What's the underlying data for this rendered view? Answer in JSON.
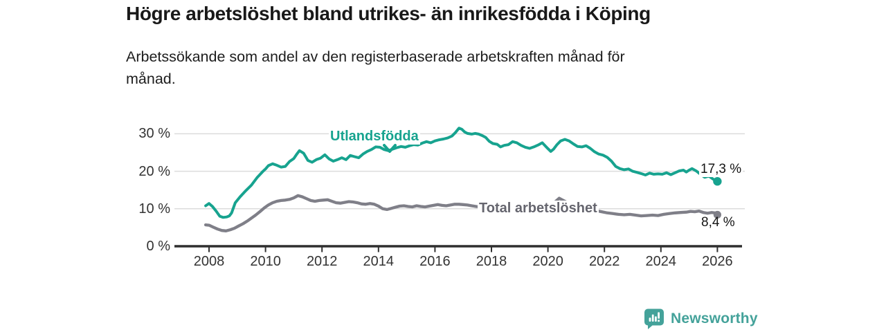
{
  "title": "Högre arbetslöshet bland utrikes- än inrikesfödda i Köping",
  "subtitle": {
    "line1": "Arbetssökande som andel av den registerbaserade arbetskraften månad för",
    "line2": "månad."
  },
  "colors": {
    "accent_teal": "#17a38f",
    "series_gray": "#7f7f88",
    "gray_label": "#65656e",
    "value_label": "#141414",
    "grid": "#dcdcdc",
    "axis": "#2f2f2f",
    "tick_text": "#333333",
    "logo_teal": "#44a29a",
    "background": "#ffffff"
  },
  "branding": {
    "logo_text": "Newsworthy",
    "logo_icon": "bar-chart-speech-bubble"
  },
  "chart_data": {
    "type": "line",
    "title": "Högre arbetslöshet bland utrikes- än inrikesfödda i Köping",
    "subtitle": "Arbetssökande som andel av den registerbaserade arbetskraften månad för månad.",
    "unit": "%",
    "grid": "horizontal",
    "xlim": [
      2007.6,
      2026.9
    ],
    "ylim": [
      0,
      33
    ],
    "x_axis": {
      "ticks": [
        2008,
        2010,
        2012,
        2014,
        2016,
        2018,
        2020,
        2022,
        2024,
        2026
      ],
      "tick_labels": [
        "2008",
        "2010",
        "2012",
        "2014",
        "2016",
        "2018",
        "2020",
        "2022",
        "2024",
        "2026"
      ]
    },
    "y_axis": {
      "ticks": [
        0,
        10,
        20,
        30
      ],
      "tick_labels": [
        "0 %",
        "10 %",
        "20 %",
        "30 %"
      ]
    },
    "series": [
      {
        "name": "Utlandsfödda",
        "color": "#17a38f",
        "end_label": "17,3 %",
        "last_value": 17.3,
        "points": [
          [
            2007.88,
            10.8
          ],
          [
            2008.0,
            11.4
          ],
          [
            2008.12,
            10.6
          ],
          [
            2008.25,
            9.4
          ],
          [
            2008.38,
            8.0
          ],
          [
            2008.5,
            7.7
          ],
          [
            2008.62,
            7.8
          ],
          [
            2008.72,
            8.1
          ],
          [
            2008.8,
            8.9
          ],
          [
            2008.93,
            11.6
          ],
          [
            2009.1,
            13.2
          ],
          [
            2009.3,
            14.8
          ],
          [
            2009.5,
            16.3
          ],
          [
            2009.7,
            18.3
          ],
          [
            2009.9,
            19.9
          ],
          [
            2010.0,
            20.6
          ],
          [
            2010.1,
            21.5
          ],
          [
            2010.25,
            22.0
          ],
          [
            2010.4,
            21.6
          ],
          [
            2010.55,
            21.1
          ],
          [
            2010.7,
            21.3
          ],
          [
            2010.85,
            22.6
          ],
          [
            2011.0,
            23.4
          ],
          [
            2011.1,
            24.5
          ],
          [
            2011.2,
            25.5
          ],
          [
            2011.35,
            24.8
          ],
          [
            2011.5,
            22.9
          ],
          [
            2011.65,
            22.4
          ],
          [
            2011.8,
            23.1
          ],
          [
            2011.95,
            23.5
          ],
          [
            2012.1,
            24.4
          ],
          [
            2012.25,
            23.3
          ],
          [
            2012.4,
            22.7
          ],
          [
            2012.55,
            23.1
          ],
          [
            2012.7,
            23.6
          ],
          [
            2012.85,
            23.1
          ],
          [
            2013.0,
            24.2
          ],
          [
            2013.15,
            23.9
          ],
          [
            2013.3,
            23.6
          ],
          [
            2013.45,
            24.6
          ],
          [
            2013.6,
            25.3
          ],
          [
            2013.75,
            25.8
          ],
          [
            2013.9,
            26.5
          ],
          [
            2014.05,
            26.4
          ],
          [
            2014.2,
            25.8
          ],
          [
            2014.35,
            25.5
          ],
          [
            2014.5,
            25.9
          ],
          [
            2014.65,
            26.3
          ],
          [
            2014.8,
            26.6
          ],
          [
            2014.95,
            26.4
          ],
          [
            2015.1,
            26.8
          ],
          [
            2015.25,
            27.1
          ],
          [
            2015.4,
            27.0
          ],
          [
            2015.55,
            27.5
          ],
          [
            2015.7,
            27.9
          ],
          [
            2015.85,
            27.6
          ],
          [
            2016.0,
            28.1
          ],
          [
            2016.15,
            28.4
          ],
          [
            2016.3,
            28.6
          ],
          [
            2016.45,
            28.9
          ],
          [
            2016.6,
            29.4
          ],
          [
            2016.72,
            30.3
          ],
          [
            2016.85,
            31.5
          ],
          [
            2016.95,
            31.2
          ],
          [
            2017.05,
            30.5
          ],
          [
            2017.15,
            30.1
          ],
          [
            2017.3,
            29.9
          ],
          [
            2017.42,
            30.1
          ],
          [
            2017.55,
            29.9
          ],
          [
            2017.68,
            29.5
          ],
          [
            2017.8,
            29.0
          ],
          [
            2017.92,
            28.0
          ],
          [
            2018.05,
            27.4
          ],
          [
            2018.2,
            27.2
          ],
          [
            2018.32,
            26.5
          ],
          [
            2018.45,
            26.9
          ],
          [
            2018.6,
            27.1
          ],
          [
            2018.75,
            27.9
          ],
          [
            2018.9,
            27.6
          ],
          [
            2019.05,
            26.9
          ],
          [
            2019.2,
            26.4
          ],
          [
            2019.35,
            26.1
          ],
          [
            2019.5,
            26.5
          ],
          [
            2019.65,
            27.0
          ],
          [
            2019.8,
            27.6
          ],
          [
            2019.95,
            26.4
          ],
          [
            2020.1,
            25.3
          ],
          [
            2020.2,
            25.9
          ],
          [
            2020.32,
            27.1
          ],
          [
            2020.45,
            28.1
          ],
          [
            2020.6,
            28.5
          ],
          [
            2020.75,
            28.1
          ],
          [
            2020.9,
            27.3
          ],
          [
            2021.05,
            26.6
          ],
          [
            2021.2,
            26.5
          ],
          [
            2021.35,
            26.8
          ],
          [
            2021.5,
            26.1
          ],
          [
            2021.65,
            25.2
          ],
          [
            2021.8,
            24.6
          ],
          [
            2021.95,
            24.3
          ],
          [
            2022.1,
            23.7
          ],
          [
            2022.25,
            22.7
          ],
          [
            2022.4,
            21.3
          ],
          [
            2022.55,
            20.7
          ],
          [
            2022.7,
            20.4
          ],
          [
            2022.85,
            20.6
          ],
          [
            2023.0,
            20.0
          ],
          [
            2023.15,
            19.7
          ],
          [
            2023.3,
            19.4
          ],
          [
            2023.45,
            19.0
          ],
          [
            2023.6,
            19.5
          ],
          [
            2023.75,
            19.2
          ],
          [
            2023.9,
            19.3
          ],
          [
            2024.05,
            19.2
          ],
          [
            2024.2,
            19.6
          ],
          [
            2024.35,
            19.1
          ],
          [
            2024.5,
            19.6
          ],
          [
            2024.65,
            20.1
          ],
          [
            2024.8,
            20.3
          ],
          [
            2024.9,
            19.8
          ],
          [
            2025.0,
            20.3
          ],
          [
            2025.1,
            20.7
          ],
          [
            2025.25,
            20.1
          ],
          [
            2025.4,
            19.2
          ],
          [
            2025.55,
            18.4
          ],
          [
            2025.7,
            18.7
          ],
          [
            2025.85,
            17.9
          ],
          [
            2026.0,
            17.3
          ]
        ]
      },
      {
        "name": "Total arbetslöshet",
        "color": "#7f7f88",
        "end_label": "8,4 %",
        "last_value": 8.4,
        "points": [
          [
            2007.88,
            5.7
          ],
          [
            2008.0,
            5.6
          ],
          [
            2008.15,
            5.1
          ],
          [
            2008.3,
            4.6
          ],
          [
            2008.45,
            4.2
          ],
          [
            2008.6,
            4.1
          ],
          [
            2008.75,
            4.4
          ],
          [
            2008.9,
            4.8
          ],
          [
            2009.05,
            5.4
          ],
          [
            2009.2,
            6.0
          ],
          [
            2009.35,
            6.7
          ],
          [
            2009.5,
            7.5
          ],
          [
            2009.65,
            8.3
          ],
          [
            2009.8,
            9.2
          ],
          [
            2009.95,
            10.2
          ],
          [
            2010.1,
            11.0
          ],
          [
            2010.25,
            11.6
          ],
          [
            2010.4,
            12.0
          ],
          [
            2010.55,
            12.2
          ],
          [
            2010.7,
            12.3
          ],
          [
            2010.85,
            12.5
          ],
          [
            2011.0,
            12.9
          ],
          [
            2011.15,
            13.5
          ],
          [
            2011.3,
            13.2
          ],
          [
            2011.45,
            12.7
          ],
          [
            2011.6,
            12.2
          ],
          [
            2011.75,
            12.0
          ],
          [
            2011.9,
            12.2
          ],
          [
            2012.05,
            12.3
          ],
          [
            2012.2,
            12.4
          ],
          [
            2012.35,
            12.0
          ],
          [
            2012.5,
            11.6
          ],
          [
            2012.65,
            11.5
          ],
          [
            2012.8,
            11.7
          ],
          [
            2012.95,
            11.9
          ],
          [
            2013.1,
            11.8
          ],
          [
            2013.25,
            11.6
          ],
          [
            2013.4,
            11.3
          ],
          [
            2013.55,
            11.2
          ],
          [
            2013.7,
            11.4
          ],
          [
            2013.85,
            11.2
          ],
          [
            2014.0,
            10.7
          ],
          [
            2014.15,
            10.0
          ],
          [
            2014.3,
            9.8
          ],
          [
            2014.45,
            10.1
          ],
          [
            2014.6,
            10.4
          ],
          [
            2014.75,
            10.7
          ],
          [
            2014.9,
            10.8
          ],
          [
            2015.05,
            10.6
          ],
          [
            2015.2,
            10.5
          ],
          [
            2015.35,
            10.8
          ],
          [
            2015.5,
            10.6
          ],
          [
            2015.65,
            10.5
          ],
          [
            2015.8,
            10.7
          ],
          [
            2015.95,
            10.9
          ],
          [
            2016.1,
            11.1
          ],
          [
            2016.25,
            10.9
          ],
          [
            2016.4,
            10.8
          ],
          [
            2016.55,
            11.0
          ],
          [
            2016.7,
            11.2
          ],
          [
            2016.85,
            11.2
          ],
          [
            2017.0,
            11.1
          ],
          [
            2017.15,
            11.0
          ],
          [
            2017.3,
            10.8
          ],
          [
            2017.45,
            10.6
          ],
          [
            2017.6,
            10.5
          ],
          [
            2017.75,
            10.3
          ],
          [
            2017.9,
            10.1
          ],
          [
            2018.05,
            10.0
          ],
          [
            2018.2,
            9.8
          ],
          [
            2018.35,
            9.6
          ],
          [
            2018.55,
            9.4
          ],
          [
            2018.8,
            9.3
          ],
          [
            2019.1,
            9.2
          ],
          [
            2019.4,
            9.1
          ],
          [
            2019.7,
            9.2
          ],
          [
            2019.95,
            9.5
          ],
          [
            2020.1,
            10.4
          ],
          [
            2020.25,
            11.8
          ],
          [
            2020.4,
            12.8
          ],
          [
            2020.55,
            12.2
          ],
          [
            2020.7,
            11.6
          ],
          [
            2020.9,
            11.0
          ],
          [
            2021.1,
            10.5
          ],
          [
            2021.3,
            10.1
          ],
          [
            2021.5,
            9.8
          ],
          [
            2021.7,
            9.5
          ],
          [
            2021.9,
            9.2
          ],
          [
            2022.1,
            8.9
          ],
          [
            2022.3,
            8.7
          ],
          [
            2022.5,
            8.5
          ],
          [
            2022.7,
            8.4
          ],
          [
            2022.9,
            8.5
          ],
          [
            2023.1,
            8.3
          ],
          [
            2023.3,
            8.1
          ],
          [
            2023.5,
            8.2
          ],
          [
            2023.7,
            8.3
          ],
          [
            2023.9,
            8.2
          ],
          [
            2024.1,
            8.5
          ],
          [
            2024.3,
            8.7
          ],
          [
            2024.5,
            8.9
          ],
          [
            2024.7,
            9.0
          ],
          [
            2024.9,
            9.1
          ],
          [
            2025.05,
            9.3
          ],
          [
            2025.2,
            9.2
          ],
          [
            2025.35,
            9.4
          ],
          [
            2025.5,
            9.0
          ],
          [
            2025.65,
            8.8
          ],
          [
            2025.8,
            9.0
          ],
          [
            2025.9,
            8.9
          ],
          [
            2026.0,
            8.4
          ]
        ]
      }
    ],
    "annotations": [
      {
        "text": "Utlandsfödda",
        "target_series": "Utlandsfödda",
        "marker": "chevron-down"
      },
      {
        "text": "Total arbetslöshet",
        "target_series": "Total arbetslöshet",
        "marker": "inline"
      }
    ]
  }
}
